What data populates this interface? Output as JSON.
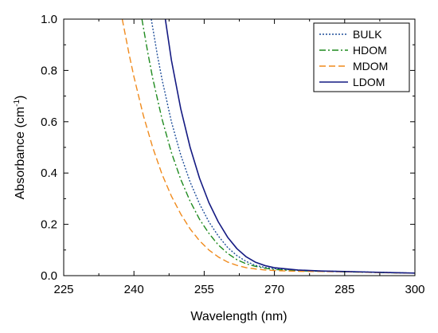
{
  "chart_data": {
    "type": "line",
    "title": "",
    "xlabel": "Wavelength (nm)",
    "ylabel": "Absorbance (cm",
    "ylabel_sup": "-1",
    "ylabel_suffix": ")",
    "xlim": [
      225,
      300
    ],
    "ylim": [
      0,
      1.0
    ],
    "xticks": [
      "225",
      "240",
      "255",
      "270",
      "285",
      "300"
    ],
    "yticks": [
      "0.0",
      "0.2",
      "0.4",
      "0.6",
      "0.8",
      "1.0"
    ],
    "grid": false,
    "legend_position": "top-right",
    "series": [
      {
        "name": "BULK",
        "color": "#1f4e9a",
        "dash": "dotted",
        "x": [
          243.7,
          245,
          246,
          248,
          250,
          252,
          254,
          256,
          258,
          260,
          262,
          264,
          266,
          268,
          270,
          275,
          280,
          285,
          290,
          295,
          300
        ],
        "y": [
          1.0,
          0.86,
          0.765,
          0.6,
          0.47,
          0.365,
          0.28,
          0.21,
          0.155,
          0.11,
          0.078,
          0.055,
          0.04,
          0.032,
          0.027,
          0.021,
          0.018,
          0.016,
          0.014,
          0.012,
          0.01
        ]
      },
      {
        "name": "HDOM",
        "color": "#1e8a1e",
        "dash": "dashdot",
        "x": [
          241.7,
          243,
          244,
          246,
          248,
          250,
          252,
          254,
          256,
          258,
          260,
          262,
          264,
          266,
          268,
          270,
          275,
          280,
          285,
          290,
          295,
          300
        ],
        "y": [
          1.0,
          0.865,
          0.77,
          0.61,
          0.48,
          0.375,
          0.29,
          0.22,
          0.165,
          0.12,
          0.087,
          0.062,
          0.046,
          0.036,
          0.029,
          0.024,
          0.019,
          0.017,
          0.015,
          0.013,
          0.011,
          0.01
        ]
      },
      {
        "name": "MDOM",
        "color": "#f08a1c",
        "dash": "dashed",
        "x": [
          237.5,
          239,
          240,
          242,
          244,
          246,
          248,
          250,
          252,
          254,
          256,
          258,
          260,
          262,
          264,
          266,
          268,
          270,
          275,
          280,
          285,
          290,
          295,
          300
        ],
        "y": [
          1.0,
          0.86,
          0.775,
          0.625,
          0.5,
          0.395,
          0.31,
          0.24,
          0.182,
          0.136,
          0.1,
          0.073,
          0.053,
          0.04,
          0.031,
          0.026,
          0.022,
          0.02,
          0.017,
          0.016,
          0.015,
          0.013,
          0.011,
          0.01
        ]
      },
      {
        "name": "LDOM",
        "color": "#141a82",
        "dash": "solid",
        "x": [
          246.7,
          248,
          250,
          252,
          254,
          256,
          258,
          260,
          262,
          264,
          266,
          268,
          270,
          275,
          280,
          285,
          290,
          295,
          300
        ],
        "y": [
          1.0,
          0.84,
          0.65,
          0.5,
          0.38,
          0.285,
          0.21,
          0.15,
          0.105,
          0.073,
          0.052,
          0.039,
          0.031,
          0.022,
          0.018,
          0.016,
          0.014,
          0.012,
          0.01
        ]
      }
    ]
  }
}
